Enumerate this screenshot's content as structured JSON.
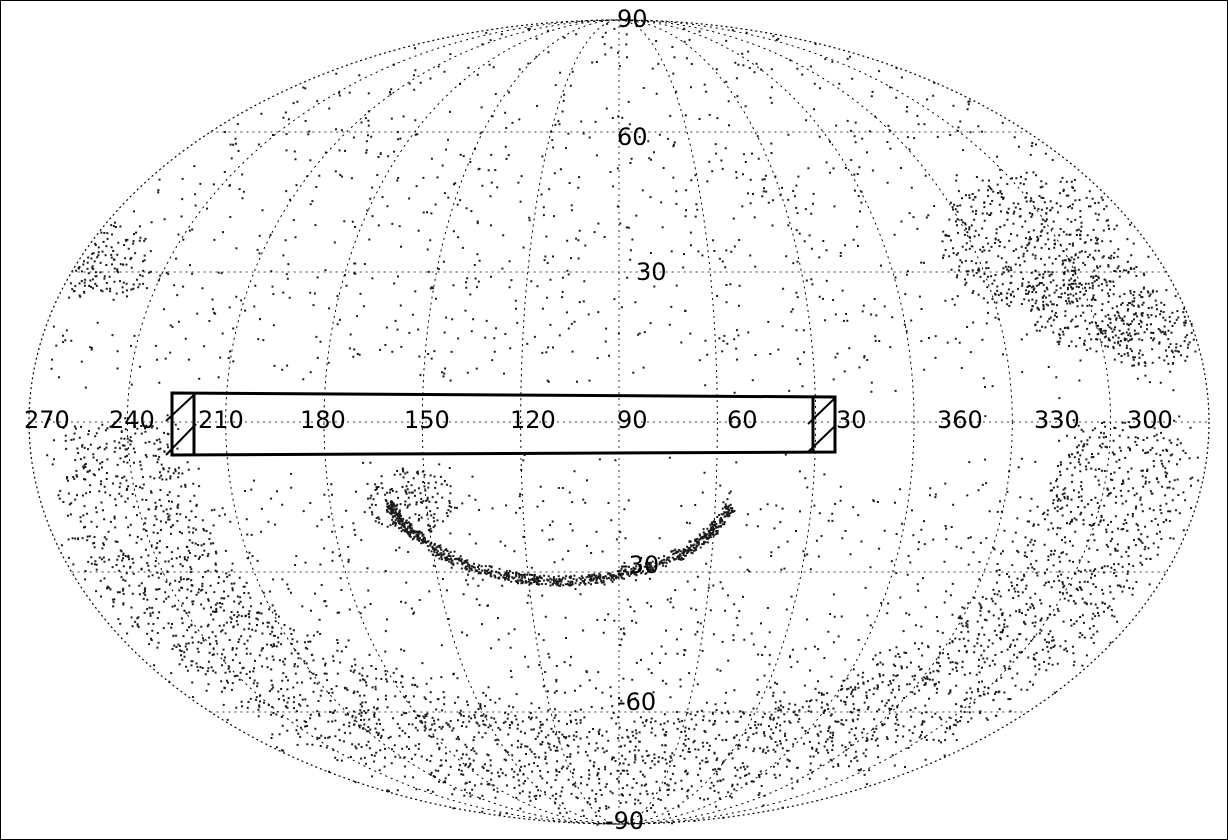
{
  "map": {
    "projection": "Aitoff / Hammer equal-area, full sky",
    "graticule_style": "dotted",
    "grid_spacing_deg": 30,
    "point_color": "#1a1a1a",
    "outline_color": "#000000",
    "longitude_labels": [
      "270",
      "240",
      "210",
      "180",
      "150",
      "120",
      "90",
      "60",
      "30",
      "360",
      "330",
      "300"
    ],
    "latitude_labels": [
      "90",
      "60",
      "30",
      "-30",
      "-60",
      "-90"
    ],
    "survey_strip": {
      "description": "rectangular survey region along the equator from 240 to 30 longitude",
      "lon_start": 240,
      "lon_end": 30,
      "hatched_ends": true
    },
    "point_distribution": "dense scatter of catalog sources, avoiding a band around latitude 0 (zone of avoidance), denser near the southern and right-hand edges"
  }
}
